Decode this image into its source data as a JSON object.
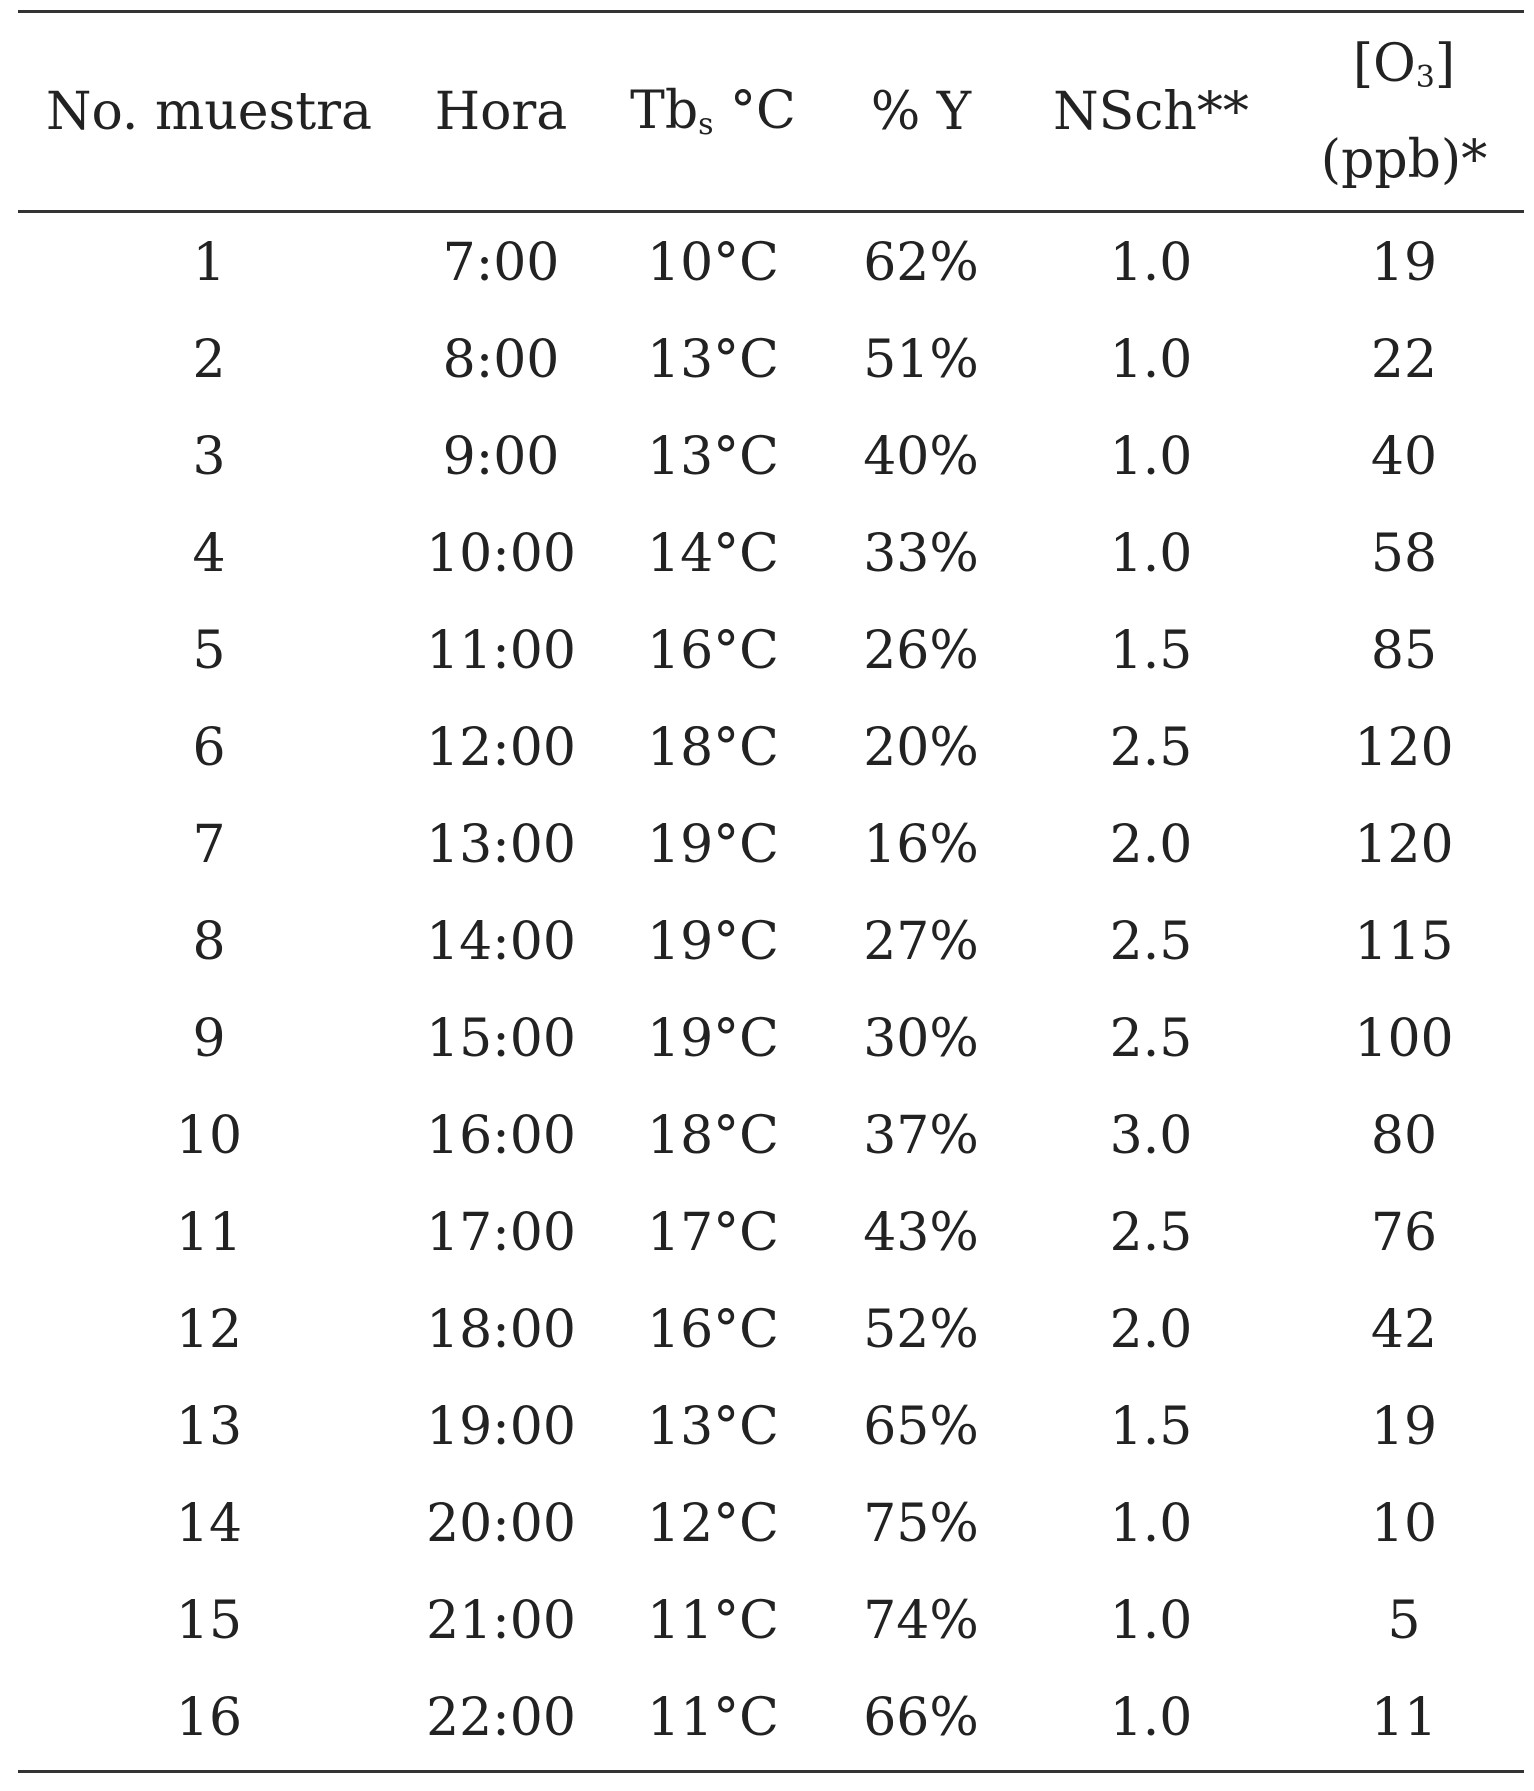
{
  "table": {
    "headers": {
      "sample": "No. muestra",
      "hour": "Hora",
      "temp_main": "Tb",
      "temp_sub": "s",
      "temp_unit": " °C",
      "humidity": "% Y",
      "nsch": "NSch**",
      "ozone_top_open": "[O",
      "ozone_top_sub": "3",
      "ozone_top_close": "]",
      "ozone_bottom": "(ppb)*"
    },
    "rows": [
      {
        "sample": "1",
        "hour": "7:00",
        "temp": "10°C",
        "humidity": "62%",
        "nsch": "1.0",
        "ozone": "19"
      },
      {
        "sample": "2",
        "hour": "8:00",
        "temp": "13°C",
        "humidity": "51%",
        "nsch": "1.0",
        "ozone": "22"
      },
      {
        "sample": "3",
        "hour": "9:00",
        "temp": "13°C",
        "humidity": "40%",
        "nsch": "1.0",
        "ozone": "40"
      },
      {
        "sample": "4",
        "hour": "10:00",
        "temp": "14°C",
        "humidity": "33%",
        "nsch": "1.0",
        "ozone": "58"
      },
      {
        "sample": "5",
        "hour": "11:00",
        "temp": "16°C",
        "humidity": "26%",
        "nsch": "1.5",
        "ozone": "85"
      },
      {
        "sample": "6",
        "hour": "12:00",
        "temp": "18°C",
        "humidity": "20%",
        "nsch": "2.5",
        "ozone": "120"
      },
      {
        "sample": "7",
        "hour": "13:00",
        "temp": "19°C",
        "humidity": "16%",
        "nsch": "2.0",
        "ozone": "120"
      },
      {
        "sample": "8",
        "hour": "14:00",
        "temp": "19°C",
        "humidity": "27%",
        "nsch": "2.5",
        "ozone": "115"
      },
      {
        "sample": "9",
        "hour": "15:00",
        "temp": "19°C",
        "humidity": "30%",
        "nsch": "2.5",
        "ozone": "100"
      },
      {
        "sample": "10",
        "hour": "16:00",
        "temp": "18°C",
        "humidity": "37%",
        "nsch": "3.0",
        "ozone": "80"
      },
      {
        "sample": "11",
        "hour": "17:00",
        "temp": "17°C",
        "humidity": "43%",
        "nsch": "2.5",
        "ozone": "76"
      },
      {
        "sample": "12",
        "hour": "18:00",
        "temp": "16°C",
        "humidity": "52%",
        "nsch": "2.0",
        "ozone": "42"
      },
      {
        "sample": "13",
        "hour": "19:00",
        "temp": "13°C",
        "humidity": "65%",
        "nsch": "1.5",
        "ozone": "19"
      },
      {
        "sample": "14",
        "hour": "20:00",
        "temp": "12°C",
        "humidity": "75%",
        "nsch": "1.0",
        "ozone": "10"
      },
      {
        "sample": "15",
        "hour": "21:00",
        "temp": "11°C",
        "humidity": "74%",
        "nsch": "1.0",
        "ozone": "5"
      },
      {
        "sample": "16",
        "hour": "22:00",
        "temp": "11°C",
        "humidity": "66%",
        "nsch": "1.0",
        "ozone": "11"
      }
    ]
  }
}
